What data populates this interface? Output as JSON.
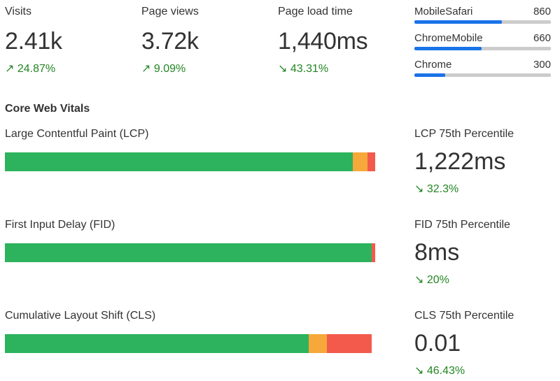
{
  "colors": {
    "positive": "#238523",
    "good": "#2db35d",
    "needs_improvement": "#f6a83a",
    "poor": "#f35a4b",
    "bar_fill": "#1a73e8",
    "track": "#cccccc"
  },
  "metrics": {
    "visits": {
      "label": "Visits",
      "value": "2.41k",
      "change": "↗ 24.87%"
    },
    "pageviews": {
      "label": "Page views",
      "value": "3.72k",
      "change": "↗ 9.09%"
    },
    "loadtime": {
      "label": "Page load time",
      "value": "1,440ms",
      "change": "↘ 43.31%"
    }
  },
  "browsers": {
    "max": 1340,
    "items": [
      {
        "name": "MobileSafari",
        "count": "860",
        "value": 860
      },
      {
        "name": "ChromeMobile",
        "count": "660",
        "value": 660
      },
      {
        "name": "Chrome",
        "count": "300",
        "value": 300
      }
    ]
  },
  "core_web_vitals": {
    "title": "Core Web Vitals",
    "lcp": {
      "label": "Large Contentful Paint (LCP)",
      "distribution": {
        "good": 94,
        "needs_improvement": 4,
        "poor": 2
      },
      "percentile_label": "LCP 75th Percentile",
      "percentile_value": "1,222ms",
      "percentile_change": "↘ 32.3%"
    },
    "fid": {
      "label": "First Input Delay (FID)",
      "distribution": {
        "good": 99,
        "needs_improvement": 0,
        "poor": 1
      },
      "percentile_label": "FID 75th Percentile",
      "percentile_value": "8ms",
      "percentile_change": "↘ 20%"
    },
    "cls": {
      "label": "Cumulative Layout Shift (CLS)",
      "distribution": {
        "good": 82,
        "needs_improvement": 5,
        "poor": 12
      },
      "percentile_label": "CLS 75th Percentile",
      "percentile_value": "0.01",
      "percentile_change": "↘ 46.43%"
    }
  }
}
